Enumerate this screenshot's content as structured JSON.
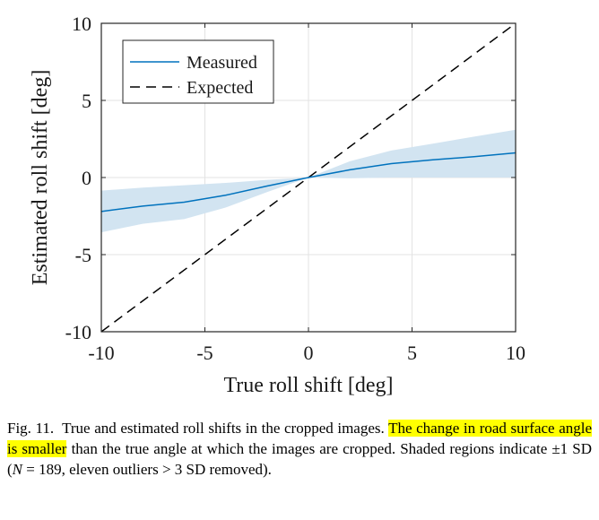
{
  "chart_data": {
    "type": "line",
    "xlabel": "True roll shift [deg]",
    "ylabel": "Estimated roll shift [deg]",
    "xlim": [
      -10,
      10
    ],
    "ylim": [
      -10,
      10
    ],
    "x_ticks": [
      "-10",
      "-5",
      "0",
      "5",
      "10"
    ],
    "y_ticks": [
      "10",
      "5",
      "0",
      "-5",
      "-10"
    ],
    "grid": true,
    "legend_position": "top-left",
    "series": [
      {
        "name": "Measured",
        "style": "solid",
        "color": "#0072BD",
        "x": [
          -10,
          -8,
          -6,
          -4,
          -2,
          0,
          2,
          4,
          6,
          8,
          10
        ],
        "y": [
          -2.2,
          -1.85,
          -1.6,
          -1.15,
          -0.55,
          0.0,
          0.5,
          0.9,
          1.15,
          1.35,
          1.6
        ],
        "band_upper": [
          -0.85,
          -0.65,
          -0.5,
          -0.35,
          -0.15,
          0.0,
          1.05,
          1.75,
          2.2,
          2.65,
          3.1
        ],
        "band_lower": [
          -3.55,
          -3.0,
          -2.7,
          -1.95,
          -0.95,
          0.0,
          -0.05,
          0.0,
          0.0,
          0.0,
          0.0
        ]
      },
      {
        "name": "Expected",
        "style": "dashed",
        "color": "#000000",
        "x": [
          -10,
          10
        ],
        "y": [
          -10,
          10
        ]
      }
    ],
    "band_color": "#d2e4f1"
  },
  "caption": {
    "label": "Fig. 11.",
    "part1": "True and estimated roll shifts in the cropped images.",
    "highlight": "The change in road surface angle is smaller",
    "part2": "than the true angle at which the images are cropped. Shaded regions indicate ±1 SD (",
    "math_n": "N",
    "part3": "= 189, eleven outliers > 3 SD removed)."
  }
}
